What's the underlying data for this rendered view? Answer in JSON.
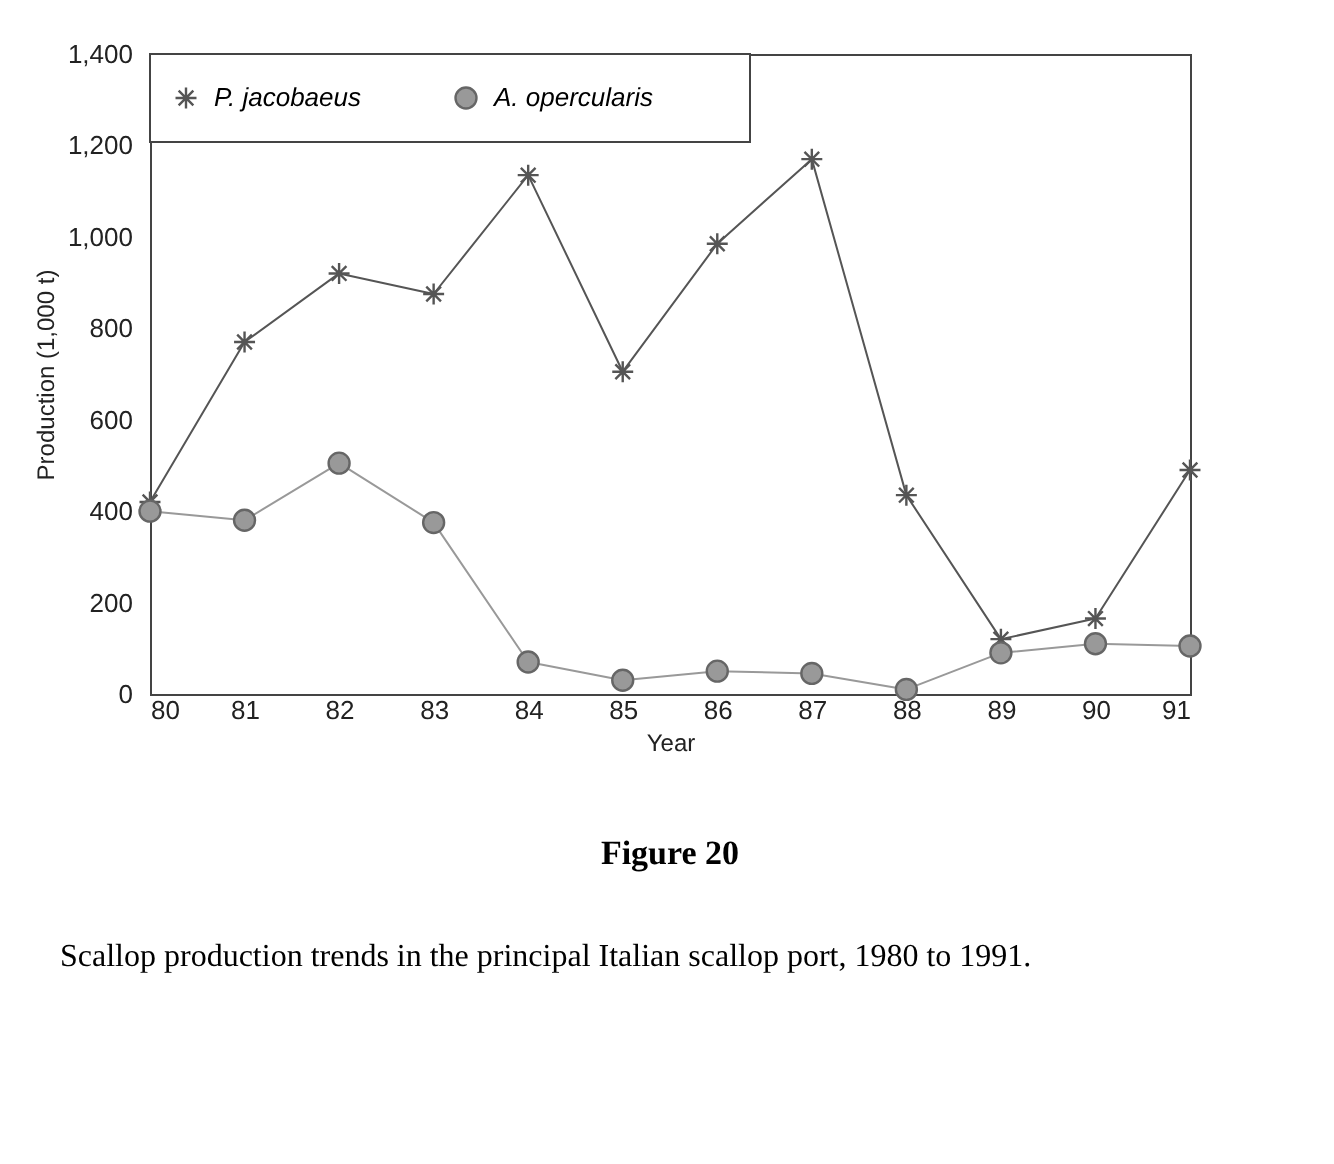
{
  "chart_data": {
    "type": "line",
    "title": "Figure 20",
    "xlabel": "Year",
    "ylabel": "Production (1,000 t)",
    "x": [
      80,
      81,
      82,
      83,
      84,
      85,
      86,
      87,
      88,
      89,
      90,
      91
    ],
    "xlim": [
      80,
      91
    ],
    "xticks": [
      80,
      81,
      82,
      83,
      84,
      85,
      86,
      87,
      88,
      89,
      90,
      91
    ],
    "ylim": [
      0,
      1400
    ],
    "yticks": [
      {
        "value": 0,
        "label": "0"
      },
      {
        "value": 200,
        "label": "200"
      },
      {
        "value": 400,
        "label": "400"
      },
      {
        "value": 600,
        "label": "600"
      },
      {
        "value": 800,
        "label": "800"
      },
      {
        "value": 1000,
        "label": "1,000"
      },
      {
        "value": 1200,
        "label": "1,200"
      },
      {
        "value": 1400,
        "label": "1,400"
      }
    ],
    "series": [
      {
        "name": "P. jacobaeus",
        "color": "#555555",
        "marker": "cross",
        "values": [
          420,
          770,
          920,
          875,
          1135,
          705,
          985,
          1170,
          435,
          120,
          165,
          490
        ]
      },
      {
        "name": "A. opercularis",
        "color": "#999999",
        "marker": "circle",
        "values": [
          400,
          380,
          505,
          375,
          70,
          30,
          50,
          45,
          10,
          90,
          110,
          105
        ]
      }
    ],
    "legend": "top left",
    "annotations": [
      "Scallop production trends in the principal Italian scallop port, 1980 to 1991."
    ]
  }
}
